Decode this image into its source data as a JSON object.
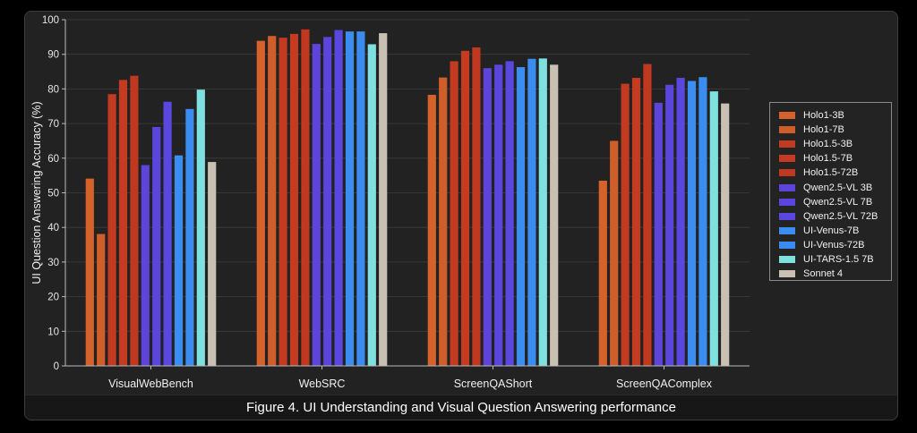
{
  "caption": "Figure 4. UI Understanding and Visual Question Answering performance",
  "chart_data": {
    "type": "bar",
    "title": "",
    "xlabel": "",
    "ylabel": "UI Question Answering Accuracy (%)",
    "ylim": [
      0,
      100
    ],
    "yticks": [
      "0",
      "10",
      "20",
      "30",
      "40",
      "50",
      "60",
      "70",
      "80",
      "90",
      "100"
    ],
    "grid": true,
    "legend_position": "right",
    "categories": [
      "VisualWebBench",
      "WebSRC",
      "ScreenQAShort",
      "ScreenQAComplex"
    ],
    "series": [
      {
        "name": "Holo1-3B",
        "color": "#d4622a",
        "values": [
          54.1,
          93.9,
          78.3,
          53.5
        ]
      },
      {
        "name": "Holo1-7B",
        "color": "#cf5e2a",
        "values": [
          38.1,
          95.3,
          83.3,
          65.0
        ]
      },
      {
        "name": "Holo1.5-3B",
        "color": "#c23a20",
        "values": [
          78.5,
          94.8,
          88.0,
          81.5
        ]
      },
      {
        "name": "Holo1.5-7B",
        "color": "#c43b21",
        "values": [
          82.6,
          95.9,
          91.0,
          83.2
        ]
      },
      {
        "name": "Holo1.5-72B",
        "color": "#c03820",
        "values": [
          83.8,
          97.2,
          92.0,
          87.2
        ]
      },
      {
        "name": "Qwen2.5-VL 3B",
        "color": "#5e44d8",
        "values": [
          58.0,
          93.0,
          86.0,
          76.0
        ]
      },
      {
        "name": "Qwen2.5-VL 7B",
        "color": "#5b46dd",
        "values": [
          69.0,
          95.0,
          87.0,
          81.2
        ]
      },
      {
        "name": "Qwen2.5-VL 72B",
        "color": "#5a48de",
        "values": [
          76.3,
          97.0,
          88.0,
          83.2
        ]
      },
      {
        "name": "UI-Venus-7B",
        "color": "#3b8ef0",
        "values": [
          60.8,
          96.6,
          86.3,
          82.3
        ]
      },
      {
        "name": "UI-Venus-72B",
        "color": "#3a8cee",
        "values": [
          74.2,
          96.6,
          88.7,
          83.4
        ]
      },
      {
        "name": "UI-TARS-1.5 7B",
        "color": "#7fe0e0",
        "values": [
          79.8,
          92.9,
          88.8,
          79.3
        ]
      },
      {
        "name": "Sonnet 4",
        "color": "#c8c0b3",
        "values": [
          58.9,
          96.1,
          87.0,
          75.8
        ]
      }
    ]
  }
}
